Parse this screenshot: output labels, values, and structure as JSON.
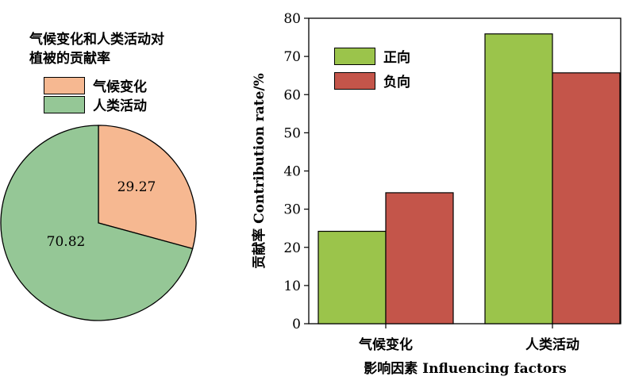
{
  "colors": {
    "climate": "#f6b891",
    "human": "#95c796",
    "positive": "#9bc44b",
    "negative": "#c4554a"
  },
  "pie": {
    "title_line1": "气候变化和人类活动对",
    "title_line2": "植被的贡献率",
    "legend": [
      "气候变化",
      "人类活动"
    ]
  },
  "bar": {
    "legend": [
      "正向",
      "负向"
    ]
  },
  "chart_data": [
    {
      "type": "pie",
      "title": "气候变化和人类活动对植被的贡献率",
      "labels": [
        "气候变化",
        "人类活动"
      ],
      "values": [
        29.27,
        70.82
      ],
      "value_labels": [
        "29.27",
        "70.82"
      ],
      "legend_position": "top-left"
    },
    {
      "type": "bar",
      "categories": [
        "气候变化",
        "人类活动"
      ],
      "series": [
        {
          "name": "正向",
          "values": [
            24.2,
            75.9
          ]
        },
        {
          "name": "负向",
          "values": [
            34.3,
            65.7
          ]
        }
      ],
      "xlabel": "影响因素 Influencing factors",
      "ylabel": "贡献率 Contribution rate/%",
      "ylim": [
        0,
        80
      ],
      "yticks": [
        0,
        10,
        20,
        30,
        40,
        50,
        60,
        70,
        80
      ],
      "grid": false,
      "legend_position": "top-left"
    }
  ]
}
